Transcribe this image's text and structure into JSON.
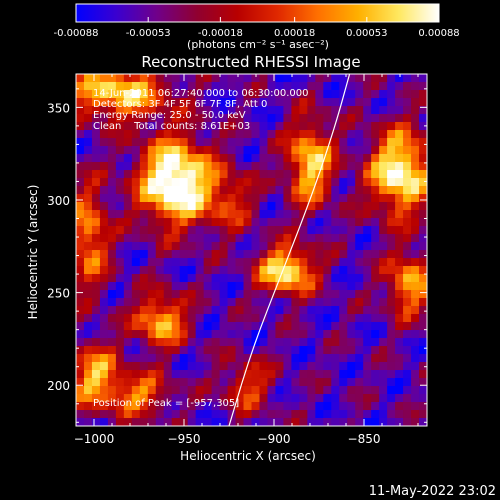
{
  "colorbar": {
    "tick_labels": [
      "-0.00088",
      "-0.00053",
      "-0.00018",
      "0.00018",
      "0.00053",
      "0.00088"
    ],
    "tick_values": [
      -0.00088,
      -0.00053,
      -0.00018,
      0.00018,
      0.00053,
      0.00088
    ],
    "range": [
      -0.00088,
      0.00088
    ],
    "unit_label": "(photons cm⁻² s⁻¹ asec⁻²)",
    "colors": [
      "#0000ff",
      "#3a00d0",
      "#70008a",
      "#900030",
      "#b80000",
      "#e02800",
      "#ff7000",
      "#ffb000",
      "#ffe860",
      "#ffffff"
    ]
  },
  "info": {
    "time_range": "14-Jun-2011 06:27:40.000 to 06:30:00.000",
    "detectors": "Detectors: 3F 4F 5F 6F 7F 8F, Att 0",
    "energy_range": "Energy Range: 25.0 - 50.0 keV",
    "clean_counts": "Clean    Total counts: 8.61E+03",
    "peak_position": "Position of Peak = [-957,305]"
  },
  "footer": {
    "timestamp": "11-May-2022 23:02"
  },
  "chart_data": {
    "type": "heatmap",
    "title": "Reconstructed RHESSI Image",
    "xlabel": "Heliocentric X (arcsec)",
    "ylabel": "Heliocentric Y (arcsec)",
    "xlim": [
      -1010,
      -815
    ],
    "ylim": [
      178,
      368
    ],
    "x_ticks": [
      -1000,
      -950,
      -900,
      -850
    ],
    "x_tick_labels": [
      "−1000",
      "−950",
      "−900",
      "−850"
    ],
    "y_ticks": [
      200,
      250,
      300,
      350
    ],
    "y_tick_labels": [
      "200",
      "250",
      "300",
      "350"
    ],
    "peak": [
      -957,
      305
    ],
    "limb_curve": [
      [
        -925,
        178
      ],
      [
        -912,
        220
      ],
      [
        -895,
        262
      ],
      [
        -878,
        305
      ],
      [
        -866,
        340
      ],
      [
        -858,
        368
      ]
    ],
    "sources": [
      {
        "x": -955,
        "y": 310,
        "amp": 1.0,
        "sx": 14,
        "sy": 16
      },
      {
        "x": -987,
        "y": 358,
        "amp": 0.7,
        "sx": 20,
        "sy": 10
      },
      {
        "x": -830,
        "y": 315,
        "amp": 0.85,
        "sx": 12,
        "sy": 16
      },
      {
        "x": -893,
        "y": 262,
        "amp": 0.8,
        "sx": 11,
        "sy": 9
      },
      {
        "x": -880,
        "y": 320,
        "amp": 0.7,
        "sx": 9,
        "sy": 16
      },
      {
        "x": -963,
        "y": 235,
        "amp": 0.65,
        "sx": 10,
        "sy": 10
      },
      {
        "x": -1000,
        "y": 205,
        "amp": 0.6,
        "sx": 10,
        "sy": 12
      },
      {
        "x": -1003,
        "y": 280,
        "amp": 0.55,
        "sx": 8,
        "sy": 20
      },
      {
        "x": -975,
        "y": 195,
        "amp": 0.5,
        "sx": 12,
        "sy": 8
      },
      {
        "x": -825,
        "y": 255,
        "amp": 0.6,
        "sx": 9,
        "sy": 12
      },
      {
        "x": -915,
        "y": 200,
        "amp": 0.4,
        "sx": 10,
        "sy": 10
      },
      {
        "x": -925,
        "y": 300,
        "amp": 0.35,
        "sx": 10,
        "sy": 12
      }
    ]
  }
}
